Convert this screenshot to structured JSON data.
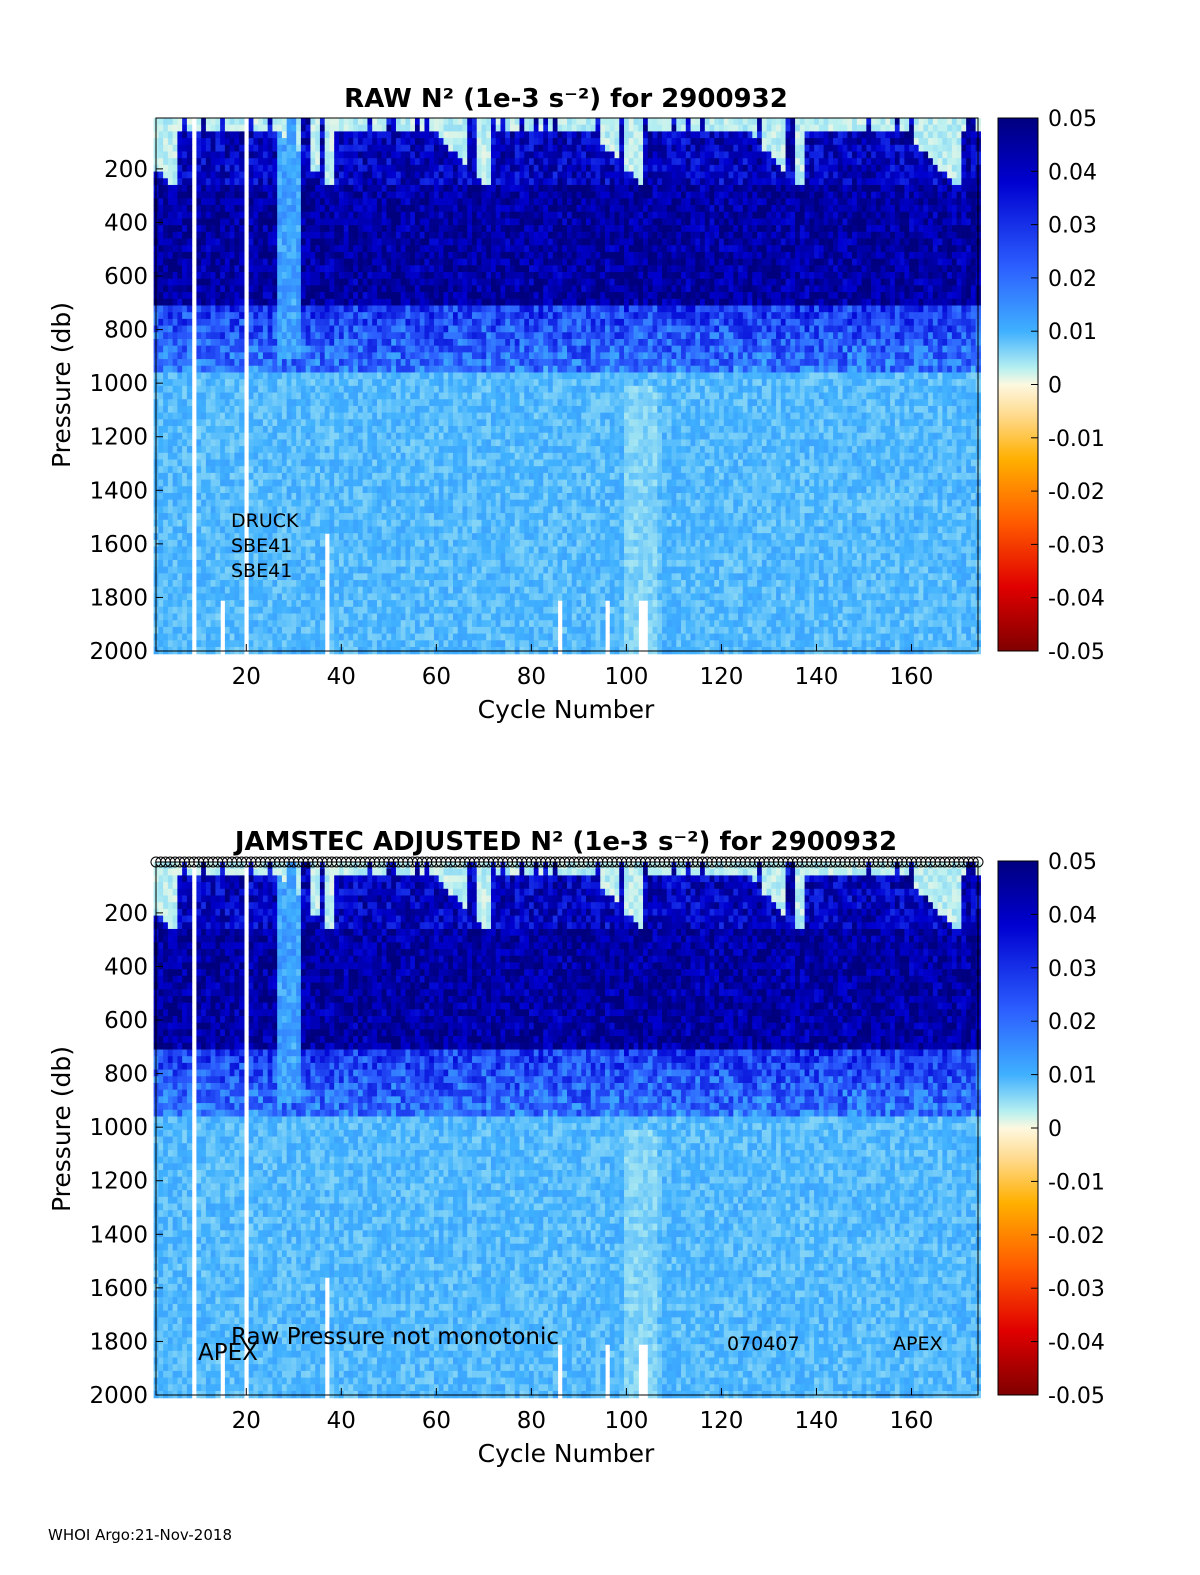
{
  "footer": "WHOI Argo:21-Nov-2018",
  "colormap": {
    "negative_end": "#800000",
    "zero": "#fdf8e0",
    "positive_end": "#00007f",
    "mid_positive": "#3fa0ff",
    "light_positive": "#c8f4f2"
  },
  "chart_data": [
    {
      "type": "heatmap",
      "title": "RAW N² (1e-3 s⁻²) for 2900932",
      "xlabel": "Cycle Number",
      "ylabel": "Pressure (db)",
      "xlim": [
        1,
        174
      ],
      "ylim": [
        2000,
        10
      ],
      "y_reversed": true,
      "xticks": [
        20,
        40,
        60,
        80,
        100,
        120,
        140,
        160
      ],
      "yticks": [
        200,
        400,
        600,
        800,
        1000,
        1200,
        1400,
        1600,
        1800,
        2000
      ],
      "colorbar": {
        "range": [
          -0.05,
          0.05
        ],
        "ticks": [
          "0.05",
          "0.04",
          "0.03",
          "0.02",
          "0.01",
          "0",
          "-0.01",
          "-0.02",
          "-0.03",
          "-0.04",
          "-0.05"
        ]
      },
      "annotations": [
        "DRUCK",
        "SBE41",
        "SBE41"
      ],
      "profile_markers": false
    },
    {
      "type": "heatmap",
      "title": "JAMSTEC  ADJUSTED N² (1e-3 s⁻²) for 2900932",
      "xlabel": "Cycle Number",
      "ylabel": "Pressure (db)",
      "xlim": [
        1,
        174
      ],
      "ylim": [
        2000,
        10
      ],
      "y_reversed": true,
      "xticks": [
        20,
        40,
        60,
        80,
        100,
        120,
        140,
        160
      ],
      "yticks": [
        200,
        400,
        600,
        800,
        1000,
        1200,
        1400,
        1600,
        1800,
        2000
      ],
      "colorbar": {
        "range": [
          -0.05,
          0.05
        ],
        "ticks": [
          "0.05",
          "0.04",
          "0.03",
          "0.02",
          "0.01",
          "0",
          "-0.01",
          "-0.02",
          "-0.03",
          "-0.04",
          "-0.05"
        ]
      },
      "annotations": [
        "Raw Pressure not monotonic",
        "APEX",
        "070407",
        "APEX"
      ],
      "profile_markers": true
    }
  ]
}
